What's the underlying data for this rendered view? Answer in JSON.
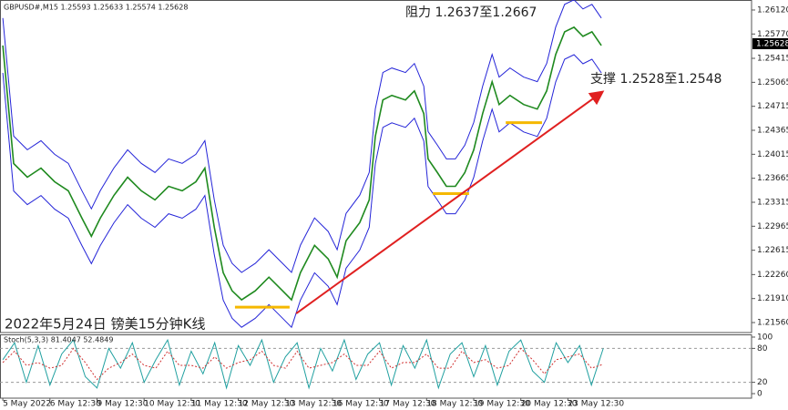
{
  "chart_data": [
    {
      "type": "line",
      "symbol_label": "GBPUSD#,M15  1.25593 1.25633 1.25574 1.25628",
      "annotations": [
        "阻力 1.2637至1.2667",
        "支撑 1.2528至1.2548",
        "2022年5月24日 镑美15分钟K线"
      ],
      "current_price": 1.25628,
      "xlim": [
        -0.06,
        15.9
      ],
      "ylim": [
        1.21414,
        1.26266
      ],
      "yticks": [
        {
          "value": 1.2612,
          "label": "1.26120"
        },
        {
          "value": 1.2577,
          "label": "1.25770"
        },
        1.25415,
        {
          "value": 1.25065,
          "label": "1.25065"
        },
        {
          "value": 1.24715,
          "label": "1.24715"
        },
        {
          "value": 1.24365,
          "label": "1.24365"
        },
        {
          "value": 1.24015,
          "label": "1.24015"
        },
        {
          "value": 1.23665,
          "label": "1.23665"
        },
        {
          "value": 1.23315,
          "label": "1.23315"
        },
        {
          "value": 1.22965,
          "label": "1.22965"
        },
        {
          "value": 1.22615,
          "label": "1.22615"
        },
        {
          "value": 1.2226,
          "label": "1.22260"
        },
        {
          "value": 1.2191,
          "label": "1.21910"
        },
        {
          "value": 1.2156,
          "label": "1.21560"
        }
      ],
      "x": [
        0,
        0.23,
        0.52,
        0.81,
        1.1,
        1.39,
        1.68,
        1.88,
        2.07,
        2.36,
        2.65,
        2.94,
        3.23,
        3.52,
        3.81,
        4.1,
        4.29,
        4.49,
        4.68,
        4.87,
        5.07,
        5.36,
        5.65,
        5.94,
        6.13,
        6.32,
        6.62,
        6.91,
        7.1,
        7.29,
        7.58,
        7.78,
        7.91,
        8.07,
        8.26,
        8.55,
        8.74,
        8.94,
        9.03,
        9.23,
        9.42,
        9.61,
        9.81,
        10.0,
        10.19,
        10.39,
        10.54,
        10.77,
        11.06,
        11.35,
        11.55,
        11.74,
        11.93,
        12.13,
        12.32,
        12.51,
        12.71
      ],
      "series": [
        {
          "color": "#1f8a1f",
          "values": [
            1.25603,
            1.2388,
            1.23681,
            1.23813,
            1.23614,
            1.23482,
            1.23084,
            1.22819,
            1.23084,
            1.23416,
            1.23681,
            1.23482,
            1.23349,
            1.23548,
            1.23482,
            1.23614,
            1.23813,
            1.22952,
            1.22289,
            1.22023,
            1.21891,
            1.22023,
            1.22222,
            1.22023,
            1.21891,
            1.22289,
            1.22686,
            1.22488,
            1.22222,
            1.22753,
            1.23018,
            1.23349,
            1.24277,
            1.24808,
            1.24874,
            1.24808,
            1.2494,
            1.24609,
            1.23946,
            1.23747,
            1.23548,
            1.23548,
            1.23747,
            1.24078,
            1.24609,
            1.25073,
            1.24741,
            1.24874,
            1.24741,
            1.24675,
            1.2494,
            1.25471,
            1.25802,
            1.25868,
            1.25736,
            1.25802,
            1.25603
          ]
        },
        {
          "color": "#2424d8",
          "values": [
            1.26003,
            1.2428,
            1.24081,
            1.24213,
            1.24014,
            1.23882,
            1.23484,
            1.23219,
            1.23484,
            1.23816,
            1.24081,
            1.23882,
            1.23749,
            1.23948,
            1.23882,
            1.24014,
            1.24213,
            1.23352,
            1.22689,
            1.22423,
            1.22291,
            1.22423,
            1.22622,
            1.22423,
            1.22291,
            1.22689,
            1.23086,
            1.22888,
            1.22622,
            1.23153,
            1.23418,
            1.23749,
            1.24677,
            1.25208,
            1.25274,
            1.25208,
            1.2534,
            1.25009,
            1.24346,
            1.24147,
            1.23948,
            1.23948,
            1.24147,
            1.24478,
            1.25009,
            1.25473,
            1.25141,
            1.25274,
            1.25141,
            1.25075,
            1.2534,
            1.25871,
            1.26202,
            1.26268,
            1.26136,
            1.26202,
            1.26003
          ]
        },
        {
          "color": "#2424d8",
          "values": [
            1.25203,
            1.2348,
            1.23281,
            1.23413,
            1.23214,
            1.23082,
            1.22684,
            1.22419,
            1.22684,
            1.23016,
            1.23281,
            1.23082,
            1.22949,
            1.23148,
            1.23082,
            1.23214,
            1.23413,
            1.22552,
            1.21889,
            1.21623,
            1.21491,
            1.21623,
            1.21822,
            1.21623,
            1.21491,
            1.21889,
            1.22286,
            1.22088,
            1.21822,
            1.22353,
            1.22618,
            1.22949,
            1.23877,
            1.24408,
            1.24474,
            1.24408,
            1.2454,
            1.24209,
            1.23546,
            1.23347,
            1.23148,
            1.23148,
            1.23347,
            1.23678,
            1.24209,
            1.24673,
            1.24341,
            1.24474,
            1.24341,
            1.24275,
            1.2454,
            1.25071,
            1.25402,
            1.25468,
            1.25336,
            1.25402,
            1.25203
          ]
        }
      ],
      "trendline": {
        "color": "#e02020",
        "x": [
          6.23,
          12.71
        ],
        "y": [
          1.21692,
          1.24914
        ]
      },
      "support_lines": {
        "color": "#f5b800",
        "segments": [
          {
            "x": [
              4.93,
              6.09
            ],
            "y": 1.21785
          },
          {
            "x": [
              9.13,
              9.9
            ],
            "y": 1.23442
          },
          {
            "x": [
              10.68,
              11.45
            ],
            "y": 1.24476
          }
        ]
      }
    },
    {
      "type": "line",
      "label": "Stoch(5,3,3) 81.4047 52.4849",
      "xlim": [
        -0.06,
        15.9
      ],
      "ylim": [
        -8,
        104.8
      ],
      "yticks": [
        100,
        80,
        20,
        0
      ],
      "levels": [
        80,
        20
      ],
      "xticks": [
        {
          "value": 0,
          "label": "5 May 2022"
        },
        {
          "value": 1,
          "label": "6 May 12:30"
        },
        {
          "value": 2,
          "label": "9 May 12:30"
        },
        {
          "value": 3,
          "label": "10 May 12:30"
        },
        {
          "value": 4,
          "label": "11 May 12:30"
        },
        {
          "value": 5,
          "label": "12 May 12:30"
        },
        {
          "value": 6,
          "label": "13 May 12:30"
        },
        {
          "value": 7,
          "label": "16 May 12:30"
        },
        {
          "value": 8,
          "label": "17 May 12:30"
        },
        {
          "value": 9,
          "label": "18 May 12:30"
        },
        {
          "value": 10,
          "label": "19 May 12:30"
        },
        {
          "value": 11,
          "label": "20 May 12:30"
        },
        {
          "value": 12,
          "label": "23 May 12:30"
        }
      ],
      "x": [
        0,
        0.25,
        0.5,
        0.75,
        1,
        1.25,
        1.5,
        1.75,
        2,
        2.25,
        2.5,
        2.75,
        3,
        3.25,
        3.5,
        3.75,
        4,
        4.25,
        4.5,
        4.75,
        5,
        5.25,
        5.5,
        5.75,
        6,
        6.25,
        6.5,
        6.75,
        7,
        7.25,
        7.5,
        7.75,
        8,
        8.25,
        8.5,
        8.75,
        9,
        9.25,
        9.5,
        9.75,
        10,
        10.25,
        10.5,
        10.75,
        11,
        11.25,
        11.5,
        11.75,
        12,
        12.25,
        12.5,
        12.75
      ],
      "series": [
        {
          "color": "#20a0a0",
          "values": [
            60,
            90,
            20,
            85,
            15,
            70,
            95,
            30,
            10,
            80,
            45,
            90,
            20,
            60,
            95,
            15,
            75,
            35,
            90,
            10,
            85,
            50,
            95,
            20,
            65,
            90,
            10,
            80,
            40,
            95,
            25,
            70,
            90,
            15,
            85,
            45,
            95,
            10,
            70,
            90,
            30,
            85,
            15,
            75,
            95,
            40,
            20,
            90,
            55,
            85,
            15,
            80
          ]
        },
        {
          "color": "#d03030",
          "dashed": true,
          "values": [
            55,
            75,
            50,
            55,
            45,
            50,
            80,
            55,
            25,
            45,
            55,
            70,
            50,
            45,
            75,
            50,
            50,
            45,
            65,
            45,
            55,
            60,
            75,
            50,
            45,
            75,
            45,
            50,
            55,
            70,
            50,
            50,
            75,
            45,
            55,
            55,
            70,
            45,
            45,
            75,
            55,
            60,
            45,
            50,
            80,
            60,
            35,
            60,
            65,
            70,
            45,
            52
          ]
        }
      ]
    }
  ]
}
